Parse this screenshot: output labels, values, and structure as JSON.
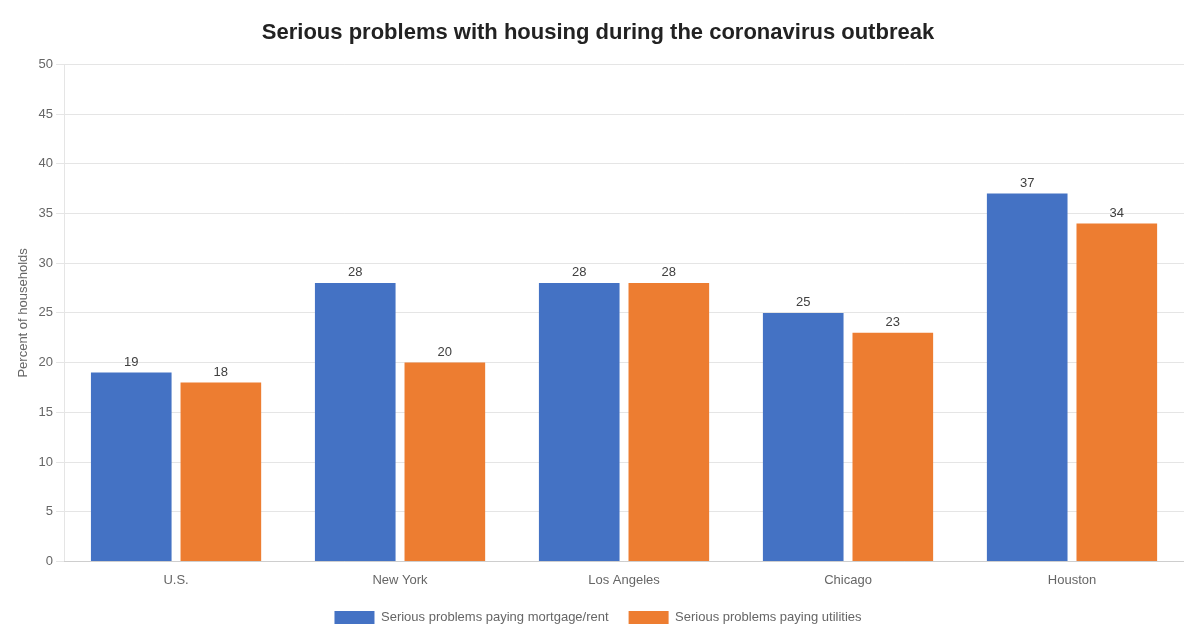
{
  "chart_data": {
    "type": "bar",
    "title": "Serious problems with housing during the coronavirus outbreak",
    "categories": [
      "U.S.",
      "New York",
      "Los Angeles",
      "Chicago",
      "Houston"
    ],
    "series": [
      {
        "name": "Serious problems paying mortgage/rent",
        "color": "#4472C4",
        "values": [
          19,
          28,
          28,
          25,
          37
        ]
      },
      {
        "name": "Serious problems paying utilities",
        "color": "#ED7D31",
        "values": [
          18,
          20,
          28,
          23,
          34
        ]
      }
    ],
    "ylabel": "Percent of households",
    "ylim": [
      0,
      50
    ],
    "yticks": [
      0,
      5,
      10,
      15,
      20,
      25,
      30,
      35,
      40,
      45,
      50
    ],
    "grid": true,
    "legend": "bottom",
    "data_labels": true
  }
}
